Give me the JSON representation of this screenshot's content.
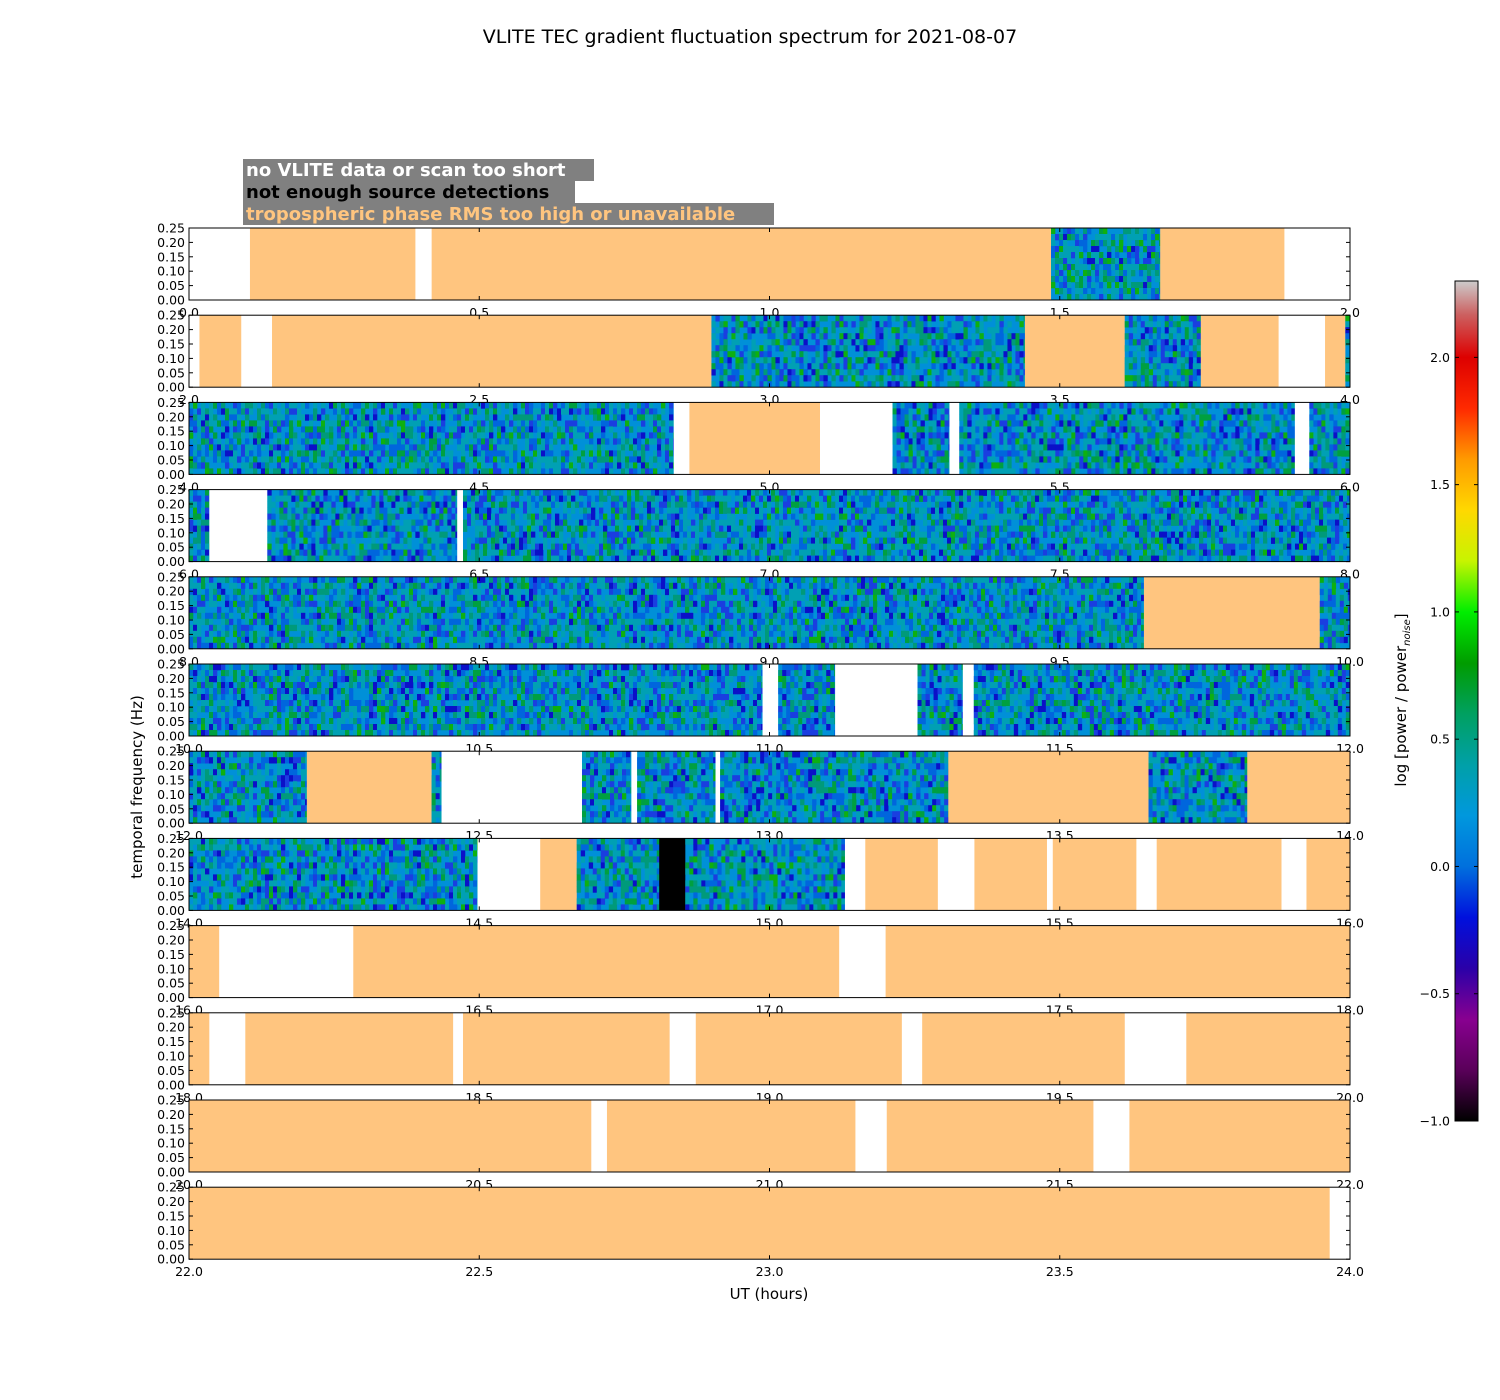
{
  "chart_data": {
    "type": "heatmap",
    "title": "VLITE TEC gradient fluctuation spectrum for 2021-08-07",
    "xlabel": "UT (hours)",
    "ylabel": "temporal frequency (Hz)",
    "ylim": [
      0,
      0.25
    ],
    "yticks": [
      "0.00",
      "0.05",
      "0.10",
      "0.15",
      "0.20",
      "0.25"
    ],
    "colorbar": {
      "label": "log [power / power",
      "label_subscript": "noise",
      "label_close": "]",
      "range": [
        -1.0,
        2.3
      ],
      "ticks": [
        "−1.0",
        "−0.5",
        "0.0",
        "0.5",
        "1.0",
        "1.5",
        "2.0"
      ],
      "tick_values": [
        -1.0,
        -0.5,
        0.0,
        0.5,
        1.0,
        1.5,
        2.0
      ]
    },
    "legend": {
      "placement": "top-left",
      "entries": [
        {
          "label": "no VLITE data or scan too short",
          "color": "#ffffff"
        },
        {
          "label": "not enough source detections",
          "color": "#000000"
        },
        {
          "label": "tropospheric phase RMS too high or unavailable",
          "color": "#ffc57f"
        }
      ]
    },
    "colors": {
      "tropo": "#ffc57f",
      "nodata": "#ffffff",
      "nodet": "#000000",
      "legend_bg": "#808080"
    },
    "panels": [
      {
        "range": [
          0,
          2
        ],
        "ticks": [
          "0.0",
          "0.5",
          "1.0",
          "1.5",
          "2.0"
        ],
        "segments": [
          [
            "w",
            0,
            0.105
          ],
          [
            "t",
            0.105,
            0.39
          ],
          [
            "w",
            0.39,
            0.418
          ],
          [
            "t",
            0.418,
            1.485
          ],
          [
            "s",
            1.485,
            1.673
          ],
          [
            "t",
            1.673,
            1.887
          ],
          [
            "w",
            1.887,
            2.0
          ]
        ]
      },
      {
        "range": [
          2,
          4
        ],
        "ticks": [
          "2.0",
          "2.5",
          "3.0",
          "3.5",
          "4.0"
        ],
        "segments": [
          [
            "w",
            2.0,
            2.018
          ],
          [
            "t",
            2.018,
            2.09
          ],
          [
            "w",
            2.09,
            2.143
          ],
          [
            "t",
            2.143,
            2.9
          ],
          [
            "s",
            2.9,
            3.44
          ],
          [
            "t",
            3.44,
            3.612
          ],
          [
            "s",
            3.612,
            3.743
          ],
          [
            "t",
            3.743,
            3.877
          ],
          [
            "w",
            3.877,
            3.957
          ],
          [
            "t",
            3.957,
            3.992
          ],
          [
            "s",
            3.992,
            4.0
          ]
        ]
      },
      {
        "range": [
          4,
          6
        ],
        "ticks": [
          "4.0",
          "4.5",
          "5.0",
          "5.5",
          "6.0"
        ],
        "segments": [
          [
            "s",
            4.0,
            4.835
          ],
          [
            "w",
            4.835,
            4.862
          ],
          [
            "t",
            4.862,
            5.087
          ],
          [
            "w",
            5.087,
            5.212
          ],
          [
            "s",
            5.212,
            5.31
          ],
          [
            "w",
            5.31,
            5.327
          ],
          [
            "s",
            5.327,
            5.905
          ],
          [
            "w",
            5.905,
            5.93
          ],
          [
            "s",
            5.93,
            6.0
          ]
        ]
      },
      {
        "range": [
          6,
          8
        ],
        "ticks": [
          "6.0",
          "6.5",
          "7.0",
          "7.5",
          "8.0"
        ],
        "segments": [
          [
            "s",
            6.0,
            6.035
          ],
          [
            "w",
            6.035,
            6.135
          ],
          [
            "s",
            6.135,
            6.462
          ],
          [
            "w",
            6.462,
            6.472
          ],
          [
            "s",
            6.472,
            8.0
          ]
        ]
      },
      {
        "range": [
          8,
          10
        ],
        "ticks": [
          "8.0",
          "8.5",
          "9.0",
          "9.5",
          "10.0"
        ],
        "segments": [
          [
            "s",
            8.0,
            9.645
          ],
          [
            "t",
            9.645,
            9.948
          ],
          [
            "s",
            9.948,
            10.0
          ]
        ]
      },
      {
        "range": [
          10,
          12
        ],
        "ticks": [
          "10.0",
          "10.5",
          "11.0",
          "11.5",
          "12.0"
        ],
        "segments": [
          [
            "s",
            10.0,
            10.988
          ],
          [
            "w",
            10.988,
            11.015
          ],
          [
            "s",
            11.015,
            11.113
          ],
          [
            "w",
            11.113,
            11.255
          ],
          [
            "s",
            11.255,
            11.333
          ],
          [
            "w",
            11.333,
            11.352
          ],
          [
            "s",
            11.352,
            12.0
          ]
        ]
      },
      {
        "range": [
          12,
          14
        ],
        "ticks": [
          "12.0",
          "12.5",
          "13.0",
          "13.5",
          "14.0"
        ],
        "segments": [
          [
            "s",
            12.0,
            12.203
          ],
          [
            "t",
            12.203,
            12.418
          ],
          [
            "s",
            12.418,
            12.435
          ],
          [
            "w",
            12.435,
            12.677
          ],
          [
            "s",
            12.677,
            12.762
          ],
          [
            "w",
            12.762,
            12.772
          ],
          [
            "s",
            12.772,
            12.907
          ],
          [
            "w",
            12.907,
            12.915
          ],
          [
            "s",
            12.915,
            13.308
          ],
          [
            "t",
            13.308,
            13.653
          ],
          [
            "s",
            13.653,
            13.823
          ],
          [
            "t",
            13.823,
            14.0
          ]
        ]
      },
      {
        "range": [
          14,
          16
        ],
        "ticks": [
          "14.0",
          "14.5",
          "15.0",
          "15.5",
          "16.0"
        ],
        "segments": [
          [
            "s",
            14.0,
            14.497
          ],
          [
            "w",
            14.497,
            14.605
          ],
          [
            "t",
            14.605,
            14.668
          ],
          [
            "s",
            14.668,
            14.81
          ],
          [
            "k",
            14.81,
            14.855
          ],
          [
            "s",
            14.855,
            15.13
          ],
          [
            "w",
            15.13,
            15.165
          ],
          [
            "t",
            15.165,
            15.29
          ],
          [
            "w",
            15.29,
            15.353
          ],
          [
            "t",
            15.353,
            15.478
          ],
          [
            "w",
            15.478,
            15.488
          ],
          [
            "t",
            15.488,
            15.632
          ],
          [
            "w",
            15.632,
            15.667
          ],
          [
            "t",
            15.667,
            15.882
          ],
          [
            "w",
            15.882,
            15.925
          ],
          [
            "t",
            15.925,
            16.0
          ]
        ]
      },
      {
        "range": [
          16,
          18
        ],
        "ticks": [
          "16.0",
          "16.5",
          "17.0",
          "17.5",
          "18.0"
        ],
        "segments": [
          [
            "t",
            16.0,
            16.052
          ],
          [
            "w",
            16.052,
            16.283
          ],
          [
            "t",
            16.283,
            17.12
          ],
          [
            "w",
            17.12,
            17.2
          ],
          [
            "t",
            17.2,
            18.0
          ]
        ]
      },
      {
        "range": [
          18,
          20
        ],
        "ticks": [
          "18.0",
          "18.5",
          "19.0",
          "19.5",
          "20.0"
        ],
        "segments": [
          [
            "t",
            18.0,
            18.035
          ],
          [
            "w",
            18.035,
            18.097
          ],
          [
            "t",
            18.097,
            18.455
          ],
          [
            "w",
            18.455,
            18.472
          ],
          [
            "t",
            18.472,
            18.828
          ],
          [
            "w",
            18.828,
            18.873
          ],
          [
            "t",
            18.873,
            19.228
          ],
          [
            "w",
            19.228,
            19.263
          ],
          [
            "t",
            19.263,
            19.612
          ],
          [
            "w",
            19.612,
            19.718
          ],
          [
            "t",
            19.718,
            20.0
          ]
        ]
      },
      {
        "range": [
          20,
          22
        ],
        "ticks": [
          "20.0",
          "20.5",
          "21.0",
          "21.5",
          "22.0"
        ],
        "segments": [
          [
            "t",
            20.0,
            20.693
          ],
          [
            "w",
            20.693,
            20.72
          ],
          [
            "t",
            20.72,
            21.148
          ],
          [
            "w",
            21.148,
            21.202
          ],
          [
            "t",
            21.202,
            21.558
          ],
          [
            "w",
            21.558,
            21.62
          ],
          [
            "t",
            21.62,
            22.0
          ]
        ]
      },
      {
        "range": [
          22,
          24
        ],
        "ticks": [
          "22.0",
          "22.5",
          "23.0",
          "23.5",
          "24.0"
        ],
        "segments": [
          [
            "t",
            22.0,
            23.965
          ],
          [
            "w",
            23.965,
            24.0
          ]
        ]
      }
    ]
  }
}
